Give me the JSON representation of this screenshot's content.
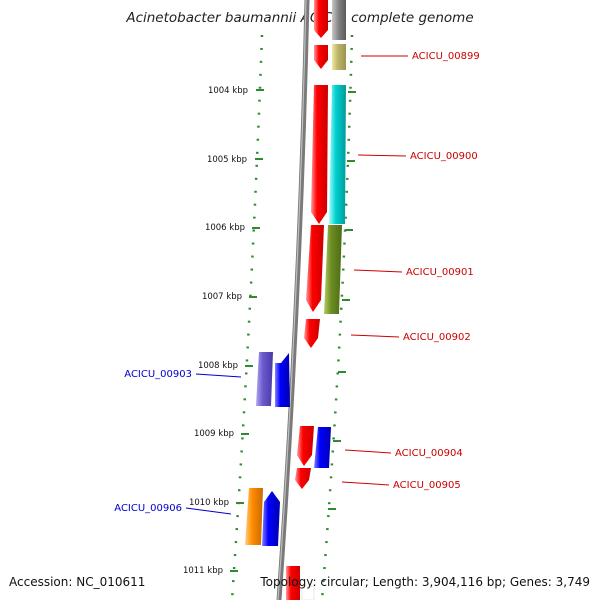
{
  "title": "Acinetobacter baumannii ACICU, complete genome",
  "footer": {
    "accession": "Accession: NC_010611",
    "stats": "Topology: circular; Length: 3,904,116 bp; Genes: 3,749"
  },
  "scale": {
    "ticks": [
      "1004 kbp",
      "1005 kbp",
      "1006 kbp",
      "1007 kbp",
      "1008 kbp",
      "1009 kbp",
      "1010 kbp",
      "1011 kbp"
    ]
  },
  "genes": [
    {
      "label": "ACICU_00899",
      "strand": "+",
      "color": "#bdb76b"
    },
    {
      "label": "ACICU_00900",
      "strand": "+",
      "color": "#00c8c8"
    },
    {
      "label": "ACICU_00901",
      "strand": "+",
      "color": "#6b8e23"
    },
    {
      "label": "ACICU_00902",
      "strand": "+",
      "color": ""
    },
    {
      "label": "ACICU_00903",
      "strand": "-",
      "color": "#6a5acd"
    },
    {
      "label": "ACICU_00904",
      "strand": "+",
      "color": "#0000ff"
    },
    {
      "label": "ACICU_00905",
      "strand": "+",
      "color": ""
    },
    {
      "label": "ACICU_00906",
      "strand": "-",
      "color": "#ff8c00"
    }
  ],
  "colors": {
    "forward_label": "#cc0000",
    "reverse_label": "#0000cc",
    "strand_red": "#ff0000",
    "strand_blue": "#0000ff",
    "backbone": "#808080",
    "scale_dots": "#2e8b2e"
  }
}
